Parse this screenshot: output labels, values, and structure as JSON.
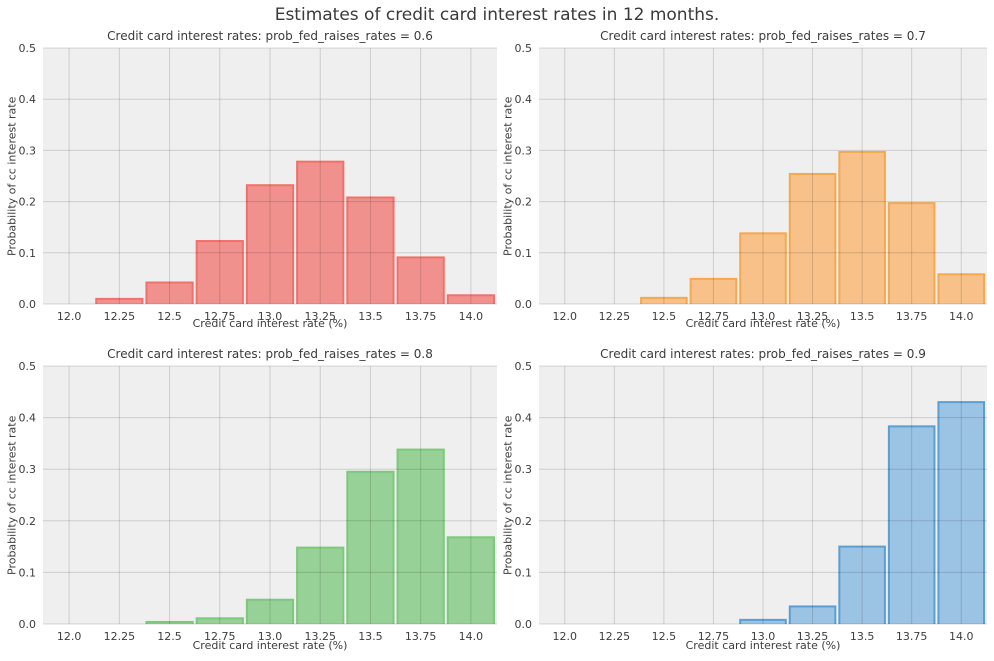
{
  "figure": {
    "title": "Estimates of credit card interest rates in 12 months."
  },
  "style": {
    "plot_background": "#efefef",
    "grid_color": "#cbcbcb",
    "grid_overlay_alpha": 0.14,
    "title_color": "#3a3a3a",
    "tick_color": "#3d3d3d"
  },
  "chart_data": [
    {
      "type": "bar",
      "subtype": "histogram",
      "title": "Credit card interest rates: prob_fed_raises_rates = 0.6",
      "xlabel": "Credit card interest rate (%)",
      "ylabel": "Probability of cc interest rate",
      "xlim": [
        11.87,
        14.13
      ],
      "ylim": [
        0,
        0.5
      ],
      "xticks": [
        12.0,
        12.25,
        12.5,
        12.75,
        13.0,
        13.25,
        13.5,
        13.75,
        14.0
      ],
      "xtick_labels": [
        "12.0",
        "12.25",
        "12.5",
        "12.75",
        "13.0",
        "13.25",
        "13.5",
        "13.75",
        "14.0"
      ],
      "yticks": [
        0.0,
        0.1,
        0.2,
        0.3,
        0.4,
        0.5
      ],
      "ytick_labels": [
        "0.0",
        "0.1",
        "0.2",
        "0.3",
        "0.4",
        "0.5"
      ],
      "bin_start": 12.125,
      "bin_width": 0.25,
      "bin_centers": [
        12.25,
        12.5,
        12.75,
        13.0,
        13.25,
        13.5,
        13.75,
        14.0
      ],
      "values": [
        0.01,
        0.042,
        0.123,
        0.232,
        0.278,
        0.208,
        0.091,
        0.017
      ],
      "fill_color": "#f0918d",
      "edge_color": "#f0716c",
      "grid": true,
      "legend": null
    },
    {
      "type": "bar",
      "subtype": "histogram",
      "title": "Credit card interest rates: prob_fed_raises_rates = 0.7",
      "xlabel": "Credit card interest rate (%)",
      "ylabel": "Probability of cc interest rate",
      "xlim": [
        11.87,
        14.13
      ],
      "ylim": [
        0,
        0.5
      ],
      "xticks": [
        12.0,
        12.25,
        12.5,
        12.75,
        13.0,
        13.25,
        13.5,
        13.75,
        14.0
      ],
      "xtick_labels": [
        "12.0",
        "12.25",
        "12.5",
        "12.75",
        "13.0",
        "13.25",
        "13.5",
        "13.75",
        "14.0"
      ],
      "yticks": [
        0.0,
        0.1,
        0.2,
        0.3,
        0.4,
        0.5
      ],
      "ytick_labels": [
        "0.0",
        "0.1",
        "0.2",
        "0.3",
        "0.4",
        "0.5"
      ],
      "bin_start": 12.375,
      "bin_width": 0.25,
      "bin_centers": [
        12.5,
        12.75,
        13.0,
        13.25,
        13.5,
        13.75,
        14.0
      ],
      "values": [
        0.012,
        0.049,
        0.138,
        0.254,
        0.297,
        0.197,
        0.058
      ],
      "fill_color": "#f7c189",
      "edge_color": "#f5a84e",
      "grid": true,
      "legend": null
    },
    {
      "type": "bar",
      "subtype": "histogram",
      "title": "Credit card interest rates: prob_fed_raises_rates = 0.8",
      "xlabel": "Credit card interest rate (%)",
      "ylabel": "Probability of cc interest rate",
      "xlim": [
        11.87,
        14.13
      ],
      "ylim": [
        0,
        0.5
      ],
      "xticks": [
        12.0,
        12.25,
        12.5,
        12.75,
        13.0,
        13.25,
        13.5,
        13.75,
        14.0
      ],
      "xtick_labels": [
        "12.0",
        "12.25",
        "12.5",
        "12.75",
        "13.0",
        "13.25",
        "13.5",
        "13.75",
        "14.0"
      ],
      "yticks": [
        0.0,
        0.1,
        0.2,
        0.3,
        0.4,
        0.5
      ],
      "ytick_labels": [
        "0.0",
        "0.1",
        "0.2",
        "0.3",
        "0.4",
        "0.5"
      ],
      "bin_start": 12.375,
      "bin_width": 0.25,
      "bin_centers": [
        12.5,
        12.75,
        13.0,
        13.25,
        13.5,
        13.75,
        14.0
      ],
      "values": [
        0.004,
        0.011,
        0.047,
        0.148,
        0.295,
        0.338,
        0.168
      ],
      "fill_color": "#97d197",
      "edge_color": "#7cc87c",
      "grid": true,
      "legend": null
    },
    {
      "type": "bar",
      "subtype": "histogram",
      "title": "Credit card interest rates: prob_fed_raises_rates = 0.9",
      "xlabel": "Credit card interest rate (%)",
      "ylabel": "Probability of cc interest rate",
      "xlim": [
        11.87,
        14.13
      ],
      "ylim": [
        0,
        0.5
      ],
      "xticks": [
        12.0,
        12.25,
        12.5,
        12.75,
        13.0,
        13.25,
        13.5,
        13.75,
        14.0
      ],
      "xtick_labels": [
        "12.0",
        "12.25",
        "12.5",
        "12.75",
        "13.0",
        "13.25",
        "13.5",
        "13.75",
        "14.0"
      ],
      "yticks": [
        0.0,
        0.1,
        0.2,
        0.3,
        0.4,
        0.5
      ],
      "ytick_labels": [
        "0.0",
        "0.1",
        "0.2",
        "0.3",
        "0.4",
        "0.5"
      ],
      "bin_start": 12.875,
      "bin_width": 0.25,
      "bin_centers": [
        13.0,
        13.25,
        13.5,
        13.75,
        14.0
      ],
      "values": [
        0.008,
        0.034,
        0.15,
        0.383,
        0.43
      ],
      "fill_color": "#9bc3e4",
      "edge_color": "#5b9ed2",
      "grid": true,
      "legend": null
    }
  ]
}
